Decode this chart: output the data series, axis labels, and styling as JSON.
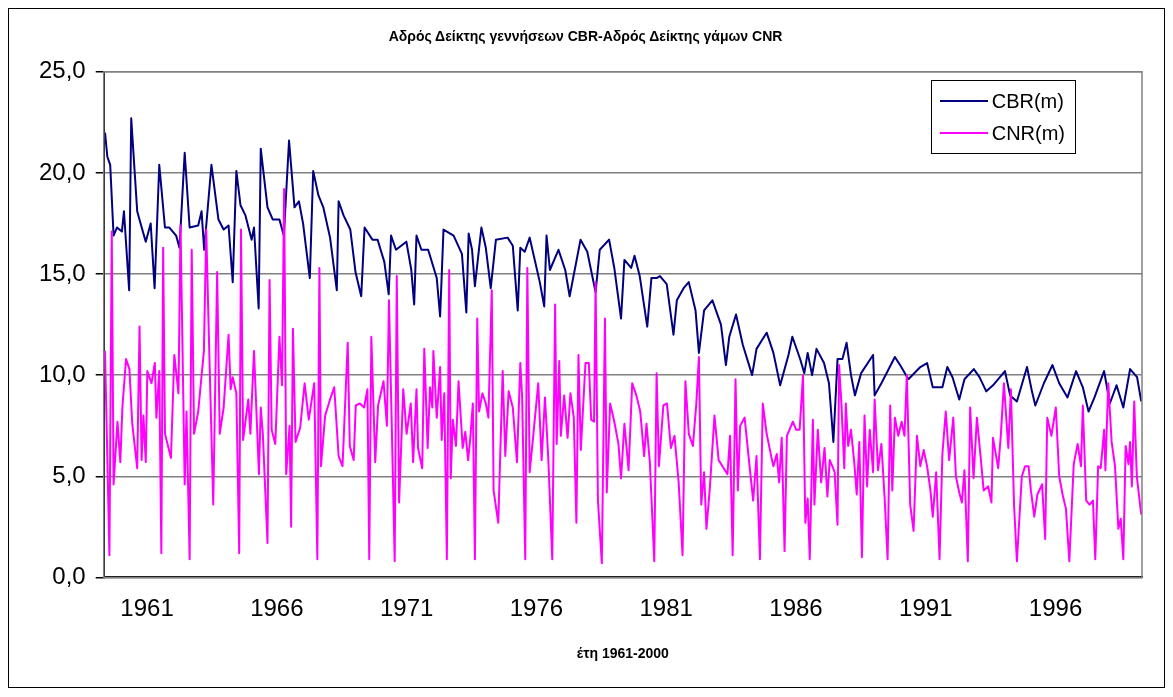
{
  "chart_data": {
    "type": "line",
    "title": "Αδρός Δείκτης γεννήσεων CBR-Αδρός Δείκτης γάμων CNR",
    "xlabel": "έτη 1961-2000",
    "xlim": [
      1959.33,
      1999.33
    ],
    "xticks": [
      1961,
      1966,
      1971,
      1976,
      1981,
      1986,
      1991,
      1996
    ],
    "ylim": [
      0,
      25
    ],
    "yticks": [
      {
        "value": 0,
        "label": "0,0"
      },
      {
        "value": 5,
        "label": "5,0"
      },
      {
        "value": 10,
        "label": "10,0"
      },
      {
        "value": 15,
        "label": "15,0"
      },
      {
        "value": 20,
        "label": "20,0"
      },
      {
        "value": 25,
        "label": "25,0"
      }
    ],
    "grid": "y",
    "legend": "top right",
    "series": [
      {
        "name": "CBR(m)",
        "color": "#000080",
        "x": [
          1959.38,
          1959.47,
          1959.58,
          1959.71,
          1959.84,
          1960.03,
          1960.11,
          1960.31,
          1960.39,
          1960.62,
          1960.75,
          1960.95,
          1961.14,
          1961.29,
          1961.47,
          1961.69,
          1961.86,
          1962.12,
          1962.25,
          1962.45,
          1962.64,
          1962.97,
          1963.1,
          1963.2,
          1963.48,
          1963.75,
          1963.95,
          1964.14,
          1964.3,
          1964.44,
          1964.6,
          1964.79,
          1965.03,
          1965.12,
          1965.3,
          1965.38,
          1965.64,
          1965.84,
          1966.1,
          1966.27,
          1966.47,
          1966.68,
          1966.85,
          1967.01,
          1967.27,
          1967.4,
          1967.6,
          1967.79,
          1968.05,
          1968.31,
          1968.38,
          1968.57,
          1968.83,
          1969.03,
          1969.25,
          1969.38,
          1969.68,
          1969.88,
          1970.14,
          1970.31,
          1970.4,
          1970.59,
          1970.99,
          1971.18,
          1971.29,
          1971.38,
          1971.57,
          1971.83,
          1972.16,
          1972.29,
          1972.42,
          1972.81,
          1973.13,
          1973.3,
          1973.39,
          1973.52,
          1973.63,
          1973.88,
          1974.05,
          1974.24,
          1974.44,
          1974.89,
          1975.09,
          1975.28,
          1975.38,
          1975.55,
          1975.74,
          1976.13,
          1976.3,
          1976.39,
          1976.52,
          1976.85,
          1977.11,
          1977.28,
          1977.7,
          1977.96,
          1978.28,
          1978.44,
          1978.8,
          1979.0,
          1979.26,
          1979.39,
          1979.65,
          1979.78,
          1979.98,
          1980.27,
          1980.43,
          1980.63,
          1980.76,
          1981.02,
          1981.28,
          1981.41,
          1981.67,
          1981.87,
          1982.13,
          1982.26,
          1982.46,
          1982.78,
          1983.11,
          1983.3,
          1983.43,
          1983.69,
          1983.95,
          1984.31,
          1984.48,
          1984.87,
          1985.13,
          1985.39,
          1985.71,
          1985.86,
          1986.16,
          1986.32,
          1986.45,
          1986.62,
          1986.79,
          1987.08,
          1987.27,
          1987.44,
          1987.6,
          1987.79,
          1987.95,
          1988.12,
          1988.27,
          1988.51,
          1988.97,
          1989.03,
          1989.29,
          1989.81,
          1990.01,
          1990.33,
          1990.79,
          1991.05,
          1991.27,
          1991.64,
          1991.83,
          1992.03,
          1992.29,
          1992.49,
          1992.85,
          1993.07,
          1993.33,
          1993.59,
          1994.05,
          1994.25,
          1994.51,
          1994.9,
          1995.09,
          1995.22,
          1995.55,
          1995.88,
          1996.14,
          1996.46,
          1996.79,
          1997.05,
          1997.27,
          1997.5,
          1997.87,
          1998.09,
          1998.35,
          1998.61,
          1998.87,
          1999.14,
          1999.3
        ],
        "values": [
          22.0,
          20.8,
          20.4,
          16.9,
          17.3,
          17.1,
          18.1,
          14.2,
          22.7,
          18.1,
          17.5,
          16.6,
          17.5,
          14.3,
          20.4,
          17.3,
          17.3,
          16.9,
          16.3,
          21.0,
          17.3,
          17.4,
          18.1,
          16.2,
          20.4,
          17.7,
          17.2,
          17.4,
          14.6,
          20.1,
          18.4,
          17.9,
          16.7,
          17.3,
          13.3,
          21.2,
          18.3,
          17.7,
          17.7,
          16.9,
          21.6,
          18.3,
          18.6,
          17.5,
          14.8,
          20.1,
          18.9,
          18.3,
          16.8,
          14.2,
          18.6,
          17.9,
          17.2,
          15.1,
          13.9,
          17.3,
          16.7,
          16.7,
          15.6,
          14.0,
          16.9,
          16.2,
          16.6,
          15.2,
          13.5,
          16.9,
          16.2,
          16.2,
          14.8,
          12.9,
          17.2,
          16.9,
          16.0,
          13.1,
          17.0,
          16.2,
          14.4,
          17.3,
          16.3,
          14.3,
          16.7,
          16.8,
          16.4,
          13.2,
          16.3,
          16.1,
          16.8,
          14.6,
          13.4,
          16.9,
          15.2,
          16.2,
          15.2,
          13.9,
          16.7,
          16.1,
          14.1,
          16.2,
          16.7,
          15.3,
          12.8,
          15.7,
          15.3,
          15.9,
          14.9,
          12.4,
          14.8,
          14.8,
          14.9,
          14.5,
          12.0,
          13.7,
          14.3,
          14.6,
          13.2,
          11.1,
          13.2,
          13.7,
          12.5,
          10.5,
          11.9,
          13.0,
          11.5,
          10.0,
          11.3,
          12.1,
          11.1,
          9.5,
          11.0,
          11.9,
          10.8,
          10.1,
          11.1,
          10.0,
          11.3,
          10.6,
          9.6,
          6.7,
          10.8,
          10.8,
          11.6,
          10.0,
          9.0,
          10.1,
          11.0,
          9.0,
          9.6,
          10.9,
          10.5,
          9.8,
          10.4,
          10.6,
          9.4,
          9.4,
          10.4,
          9.9,
          8.8,
          9.8,
          10.3,
          9.9,
          9.2,
          9.5,
          10.2,
          9.0,
          8.7,
          10.4,
          9.2,
          8.5,
          9.6,
          10.5,
          9.6,
          8.9,
          10.2,
          9.4,
          8.2,
          8.9,
          10.2,
          8.6,
          9.5,
          8.4,
          10.3,
          9.9,
          8.7
        ]
      },
      {
        "name": "CNR(m)",
        "color": "#ff00ff",
        "x": [
          1959.38,
          1959.55,
          1959.64,
          1959.71,
          1959.86,
          1959.97,
          1960.05,
          1960.19,
          1960.32,
          1960.43,
          1960.62,
          1960.71,
          1960.79,
          1960.86,
          1960.95,
          1961.01,
          1961.17,
          1961.3,
          1961.36,
          1961.47,
          1961.55,
          1961.62,
          1961.69,
          1961.92,
          1962.05,
          1962.21,
          1962.29,
          1962.45,
          1962.52,
          1962.64,
          1962.72,
          1962.81,
          1962.97,
          1963.19,
          1963.28,
          1963.38,
          1963.55,
          1963.7,
          1963.8,
          1963.95,
          1964.14,
          1964.22,
          1964.3,
          1964.44,
          1964.55,
          1964.62,
          1964.7,
          1964.9,
          1964.98,
          1965.12,
          1965.31,
          1965.38,
          1965.46,
          1965.64,
          1965.72,
          1965.8,
          1965.94,
          1966.1,
          1966.2,
          1966.28,
          1966.36,
          1966.49,
          1966.55,
          1966.62,
          1966.72,
          1966.9,
          1967.07,
          1967.23,
          1967.44,
          1967.56,
          1967.64,
          1967.7,
          1967.86,
          1968.05,
          1968.21,
          1968.38,
          1968.53,
          1968.73,
          1968.81,
          1968.96,
          1969.04,
          1969.2,
          1969.36,
          1969.49,
          1969.56,
          1969.64,
          1969.79,
          1969.9,
          1970.11,
          1970.24,
          1970.32,
          1970.46,
          1970.54,
          1970.62,
          1970.71,
          1970.87,
          1971.0,
          1971.16,
          1971.25,
          1971.38,
          1971.44,
          1971.6,
          1971.68,
          1971.81,
          1971.9,
          1971.99,
          1972.03,
          1972.16,
          1972.29,
          1972.35,
          1972.45,
          1972.55,
          1972.64,
          1972.7,
          1972.78,
          1972.9,
          1973.0,
          1973.16,
          1973.26,
          1973.37,
          1973.46,
          1973.55,
          1973.63,
          1973.72,
          1973.79,
          1973.92,
          1974.05,
          1974.15,
          1974.28,
          1974.35,
          1974.53,
          1974.7,
          1974.8,
          1974.93,
          1975.09,
          1975.25,
          1975.38,
          1975.45,
          1975.57,
          1975.65,
          1975.74,
          1975.87,
          1976.07,
          1976.2,
          1976.33,
          1976.46,
          1976.61,
          1976.72,
          1976.78,
          1976.88,
          1976.94,
          1977.07,
          1977.2,
          1977.31,
          1977.44,
          1977.54,
          1977.62,
          1977.71,
          1977.89,
          1978.02,
          1978.11,
          1978.22,
          1978.28,
          1978.37,
          1978.52,
          1978.64,
          1978.71,
          1978.84,
          1979.0,
          1979.16,
          1979.26,
          1979.39,
          1979.55,
          1979.69,
          1979.85,
          1980.0,
          1980.15,
          1980.24,
          1980.37,
          1980.54,
          1980.63,
          1980.72,
          1980.89,
          1981.03,
          1981.18,
          1981.32,
          1981.48,
          1981.63,
          1981.74,
          1981.87,
          1982.03,
          1982.16,
          1982.26,
          1982.35,
          1982.46,
          1982.55,
          1982.68,
          1982.86,
          1983.02,
          1983.17,
          1983.36,
          1983.46,
          1983.56,
          1983.67,
          1983.76,
          1983.85,
          1984.02,
          1984.18,
          1984.35,
          1984.48,
          1984.61,
          1984.72,
          1984.87,
          1985.06,
          1985.13,
          1985.26,
          1985.35,
          1985.45,
          1985.56,
          1985.65,
          1985.88,
          1986.01,
          1986.14,
          1986.27,
          1986.36,
          1986.45,
          1986.53,
          1986.65,
          1986.71,
          1986.84,
          1986.97,
          1987.1,
          1987.21,
          1987.3,
          1987.4,
          1987.49,
          1987.6,
          1987.66,
          1987.75,
          1987.86,
          1987.92,
          1988.01,
          1988.12,
          1988.25,
          1988.34,
          1988.44,
          1988.54,
          1988.64,
          1988.74,
          1988.84,
          1988.97,
          1989.03,
          1989.16,
          1989.29,
          1989.42,
          1989.53,
          1989.63,
          1989.71,
          1989.81,
          1989.94,
          1990.07,
          1990.18,
          1990.27,
          1990.4,
          1990.53,
          1990.66,
          1990.79,
          1990.92,
          1991.05,
          1991.18,
          1991.27,
          1991.4,
          1991.53,
          1991.64,
          1991.77,
          1991.9,
          1992.06,
          1992.16,
          1992.29,
          1992.39,
          1992.49,
          1992.62,
          1992.71,
          1992.84,
          1992.97,
          1993.11,
          1993.23,
          1993.4,
          1993.53,
          1993.59,
          1993.79,
          1993.89,
          1994.01,
          1994.18,
          1994.28,
          1994.4,
          1994.51,
          1994.7,
          1994.83,
          1994.96,
          1995.05,
          1995.18,
          1995.3,
          1995.48,
          1995.6,
          1995.68,
          1995.84,
          1996.01,
          1996.14,
          1996.27,
          1996.4,
          1996.53,
          1996.7,
          1996.85,
          1996.98,
          1997.05,
          1997.18,
          1997.31,
          1997.44,
          1997.53,
          1997.64,
          1997.74,
          1997.87,
          1997.92,
          1998.03,
          1998.16,
          1998.29,
          1998.42,
          1998.51,
          1998.61,
          1998.7,
          1998.81,
          1998.87,
          1998.94,
          1999.03,
          1999.13,
          1999.3
        ],
        "values": [
          11.2,
          1.1,
          17.1,
          4.6,
          7.7,
          5.7,
          8.4,
          10.8,
          10.3,
          7.6,
          5.4,
          12.4,
          5.8,
          8.0,
          5.7,
          10.2,
          9.6,
          10.6,
          7.9,
          10.2,
          1.2,
          16.3,
          7.1,
          5.9,
          11.0,
          9.1,
          17.4,
          4.6,
          8.2,
          0.9,
          16.2,
          7.1,
          8.2,
          11.2,
          17.2,
          12.0,
          3.6,
          15.1,
          7.1,
          8.4,
          12.0,
          9.3,
          9.9,
          9.1,
          1.2,
          17.2,
          6.8,
          8.8,
          7.1,
          11.2,
          5.1,
          8.4,
          7.1,
          1.7,
          14.7,
          7.3,
          6.6,
          11.9,
          9.5,
          19.2,
          5.1,
          7.5,
          2.5,
          12.3,
          6.7,
          7.4,
          9.6,
          7.8,
          9.6,
          0.9,
          15.3,
          5.5,
          8.0,
          8.8,
          9.4,
          6.0,
          5.5,
          11.6,
          6.5,
          5.8,
          8.5,
          8.6,
          8.4,
          9.3,
          0.9,
          11.9,
          5.7,
          8.5,
          9.7,
          7.5,
          13.7,
          5.6,
          0.8,
          14.9,
          3.7,
          9.3,
          7.1,
          8.6,
          5.7,
          9.3,
          6.4,
          5.4,
          11.3,
          6.4,
          9.4,
          8.4,
          11.2,
          7.9,
          10.4,
          6.8,
          9.1,
          0.9,
          15.2,
          4.9,
          7.8,
          6.5,
          9.7,
          6.4,
          7.2,
          5.8,
          7.0,
          8.6,
          0.9,
          12.8,
          8.2,
          9.1,
          8.6,
          7.9,
          14.2,
          4.3,
          2.7,
          10.2,
          6.0,
          9.2,
          8.4,
          5.7,
          10.6,
          8.9,
          0.9,
          15.3,
          5.2,
          6.9,
          9.6,
          5.8,
          8.9,
          5.8,
          0.9,
          13.5,
          6.6,
          10.7,
          7.0,
          9.0,
          6.9,
          9.1,
          7.9,
          2.7,
          11.0,
          6.3,
          10.6,
          10.6,
          7.8,
          7.7,
          14.6,
          3.8,
          0.7,
          12.8,
          4.2,
          8.6,
          7.7,
          6.6,
          4.9,
          7.6,
          5.3,
          9.6,
          9.0,
          8.2,
          6.0,
          7.6,
          5.7,
          0.8,
          10.1,
          5.5,
          8.5,
          8.6,
          6.4,
          7.0,
          4.7,
          1.1,
          9.7,
          7.1,
          6.5,
          8.6,
          10.9,
          3.6,
          5.2,
          2.4,
          4.4,
          8.0,
          5.8,
          5.5,
          5.1,
          7.0,
          1.1,
          9.8,
          4.3,
          7.5,
          7.9,
          5.9,
          3.8,
          6.0,
          0.9,
          8.6,
          7.1,
          5.9,
          5.5,
          6.1,
          4.7,
          6.9,
          1.3,
          7.0,
          7.7,
          7.3,
          7.3,
          10.0,
          2.7,
          3.9,
          0.9,
          7.8,
          3.6,
          7.3,
          4.7,
          6.4,
          4.0,
          5.8,
          5.5,
          5.2,
          2.6,
          10.5,
          8.6,
          5.4,
          8.6,
          6.5,
          7.3,
          5.6,
          4.1,
          6.7,
          1.0,
          8.0,
          4.5,
          7.3,
          5.2,
          8.8,
          5.3,
          6.6,
          3.8,
          0.9,
          8.5,
          4.3,
          7.9,
          7.0,
          7.7,
          7.0,
          10.0,
          3.6,
          2.3,
          7.0,
          5.5,
          6.3,
          5.5,
          4.3,
          3.0,
          5.2,
          0.9,
          6.1,
          8.2,
          5.8,
          7.9,
          5.0,
          4.2,
          3.7,
          5.3,
          0.8,
          8.4,
          4.9,
          7.9,
          6.0,
          4.3,
          4.5,
          3.7,
          6.9,
          5.4,
          7.0,
          9.6,
          6.4,
          9.3,
          3.6,
          0.8,
          5.0,
          5.5,
          5.5,
          4.3,
          3.0,
          4.1,
          4.6,
          1.9,
          7.9,
          7.0,
          8.4,
          5.0,
          4.1,
          3.4,
          0.8,
          5.6,
          6.6,
          5.5,
          8.5,
          3.8,
          3.6,
          3.8,
          0.9,
          5.5,
          5.4,
          7.3,
          5.3,
          9.6,
          6.7,
          5.5,
          2.4,
          2.9,
          0.9,
          6.5,
          5.6,
          6.7,
          4.5,
          8.7,
          5.0,
          3.1
        ]
      }
    ]
  }
}
